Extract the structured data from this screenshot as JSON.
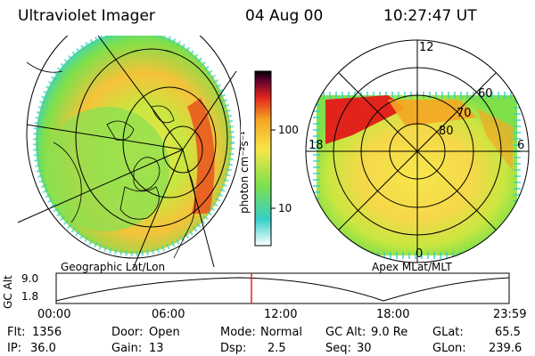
{
  "header": {
    "instrument": "Ultraviolet Imager",
    "date": "04 Aug 00",
    "time": "10:27:47 UT"
  },
  "geo_panel": {
    "label": "Geographic Lat/Lon"
  },
  "apex_panel": {
    "label": "Apex MLat/MLT",
    "mlt_labels": {
      "top": "12",
      "left": "18",
      "right": "6",
      "bottom": "0"
    },
    "lat_labels": [
      "60",
      "70",
      "80"
    ]
  },
  "colorbar": {
    "unit_label": "photon cm⁻²s⁻¹",
    "ticks": [
      "100",
      "10"
    ],
    "colors": [
      "#ffffff",
      "#35d0c8",
      "#7fe04a",
      "#f6e64a",
      "#f5a623",
      "#e0241c",
      "#5a0030",
      "#000000"
    ]
  },
  "timeline": {
    "axis_label": "GC Alt",
    "y_ticks": [
      "9.0",
      "1.8"
    ],
    "x_ticks": [
      "00:00",
      "06:00",
      "12:00",
      "18:00",
      "23:59"
    ],
    "current_marker_color": "#e0241c"
  },
  "info": {
    "flt_label": "Flt:",
    "flt_value": "1356",
    "ip_label": "IP:",
    "ip_value": "36.0",
    "door_label": "Door:",
    "door_value": "Open",
    "gain_label": "Gain:",
    "gain_value": "13",
    "mode_label": "Mode:",
    "mode_value": "Normal",
    "dsp_label": "Dsp:",
    "dsp_value": "2.5",
    "gcalt_label": "GC Alt:",
    "gcalt_value": "9.0 Re",
    "seq_label": "Seq:",
    "seq_value": "30",
    "glat_label": "GLat:",
    "glat_value": "65.5",
    "glon_label": "GLon:",
    "glon_value": "239.6"
  }
}
